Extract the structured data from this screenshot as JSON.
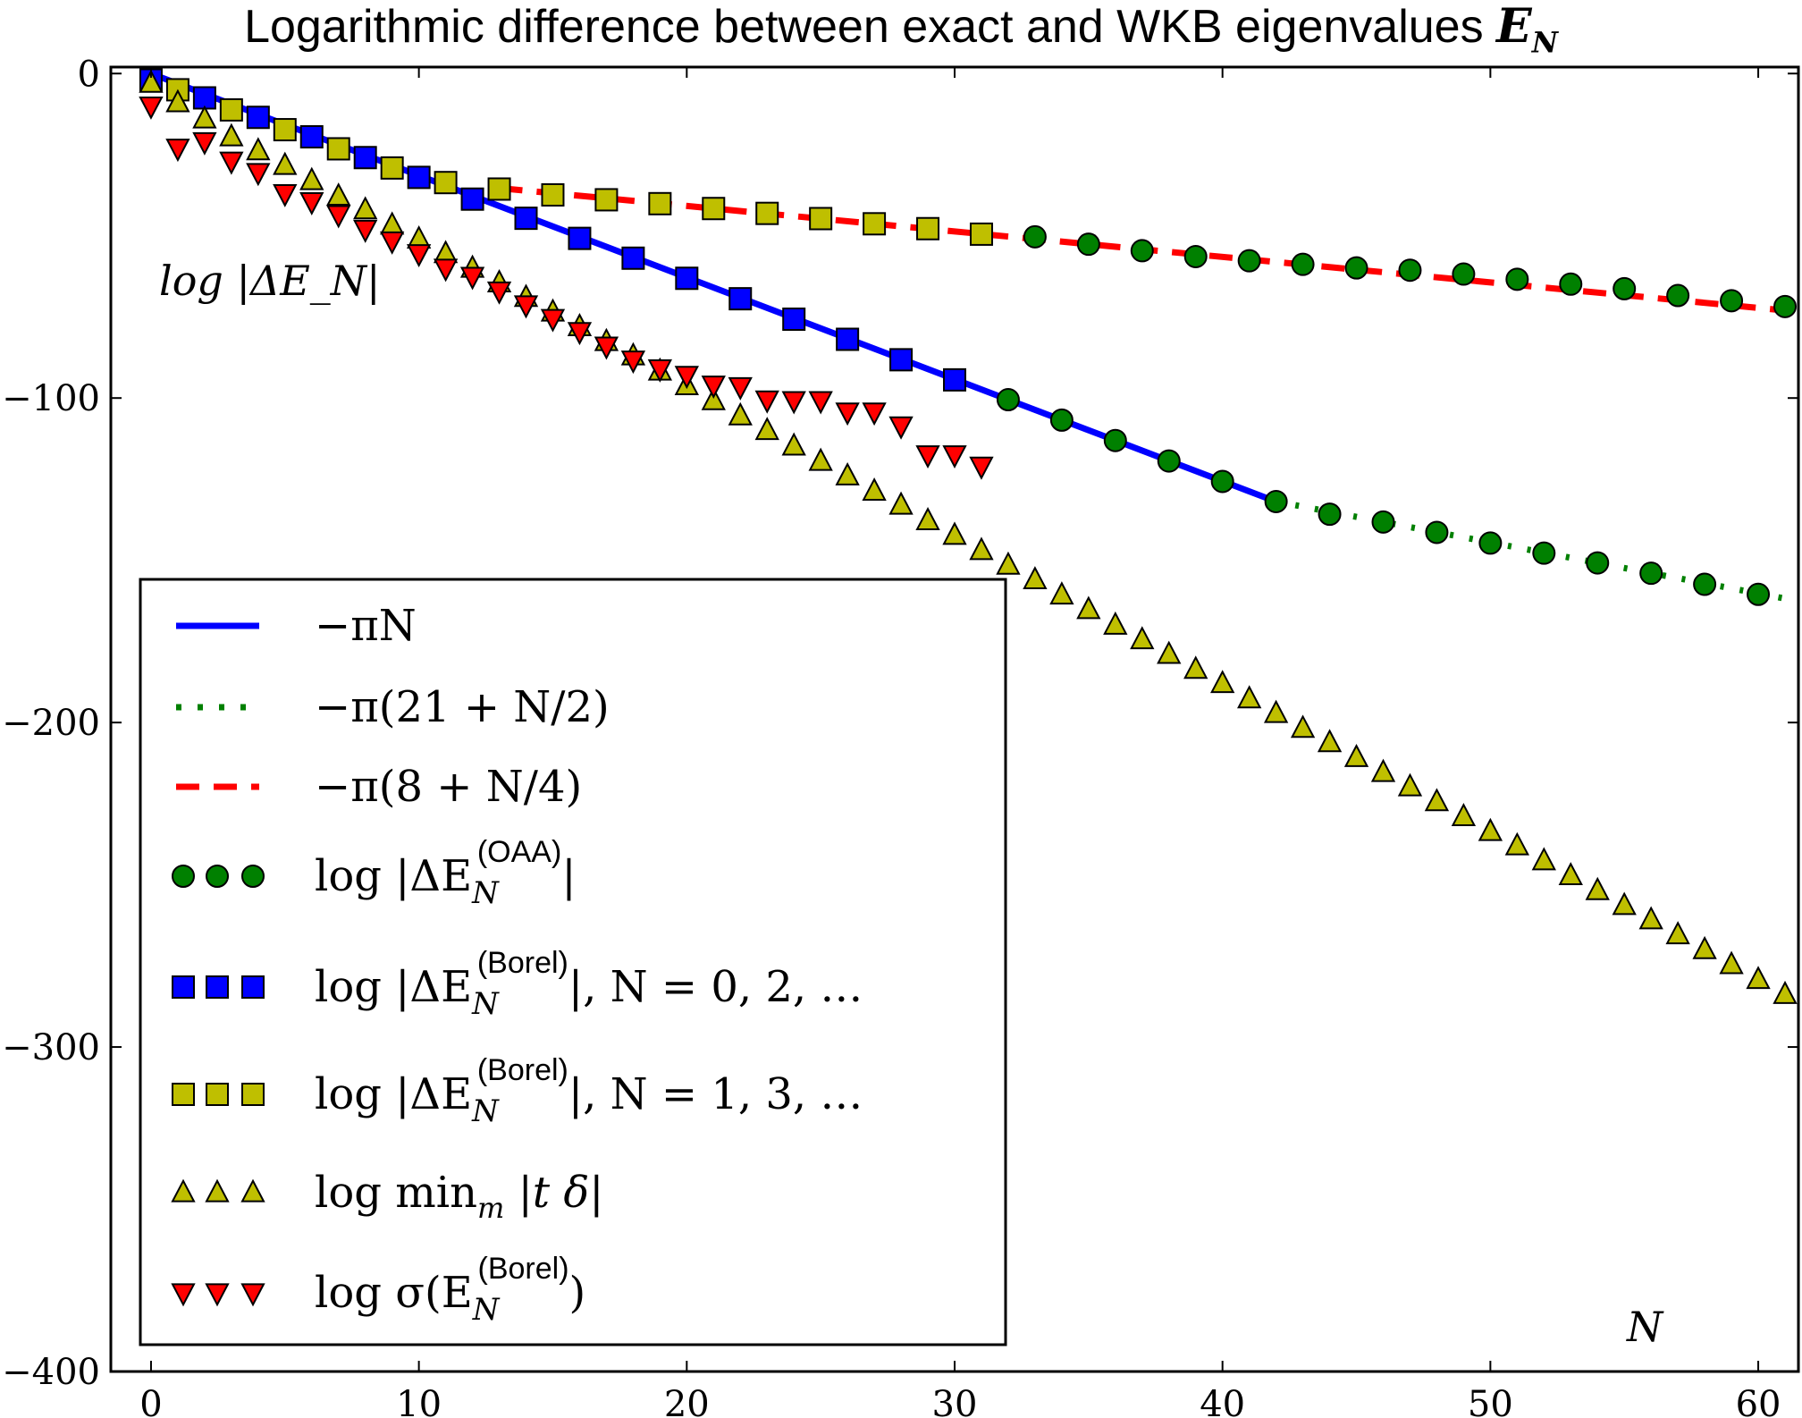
{
  "chart_data": {
    "type": "scatter",
    "title": "Logarithmic difference between exact and WKB eigenvalues",
    "title_symbol": "E",
    "title_symbol_sub": "N",
    "ylabel_annotation": "log |ΔE_N|",
    "xlabel_annotation": "N",
    "xlim": [
      -1.5,
      61.5
    ],
    "ylim": [
      -400,
      2
    ],
    "xticks": [
      0,
      10,
      20,
      30,
      40,
      50,
      60
    ],
    "yticks": [
      0,
      -100,
      -200,
      -300,
      -400
    ],
    "ytick_labels": [
      "0",
      "−100",
      "−200",
      "−300",
      "−400"
    ],
    "legend_position": "lower-left",
    "series": [
      {
        "id": "line_piN",
        "kind": "line",
        "style": "solid",
        "color": "#0000ff",
        "legend_main": "−πN",
        "legend_sup": "",
        "legend_rest": "",
        "x": [
          0,
          42
        ],
        "y": [
          0,
          -131.9
        ]
      },
      {
        "id": "line_21",
        "kind": "line",
        "style": "dotted",
        "color": "#008000",
        "legend_main": "−π(21 + N/2)",
        "legend_sup": "",
        "legend_rest": "",
        "x": [
          42,
          61.5
        ],
        "y": [
          -131.9,
          -162.6
        ]
      },
      {
        "id": "line_8",
        "kind": "line",
        "style": "dashed",
        "color": "#ff0000",
        "legend_main": "−π(8 + N/4)",
        "legend_sup": "",
        "legend_rest": "",
        "x": [
          13,
          61.5
        ],
        "y": [
          -35.3,
          -73.4
        ]
      },
      {
        "id": "oaa",
        "kind": "marker",
        "marker": "circle",
        "color": "#008000",
        "legend_main": "log |ΔE",
        "legend_sup": "(OAA)",
        "legend_rest": "|",
        "x": [
          32,
          33,
          34,
          35,
          36,
          37,
          38,
          39,
          40,
          41,
          42,
          43,
          44,
          45,
          46,
          47,
          48,
          49,
          50,
          51,
          52,
          53,
          54,
          55,
          56,
          57,
          58,
          59,
          60,
          61
        ],
        "y": [
          -100.5,
          -50.3,
          -106.8,
          -52.6,
          -113.1,
          -54.6,
          -119.4,
          -56.4,
          -125.7,
          -57.7,
          -131.9,
          -58.8,
          -135.8,
          -59.9,
          -138.2,
          -60.6,
          -141.4,
          -61.8,
          -144.7,
          -63.4,
          -147.8,
          -64.9,
          -150.8,
          -66.3,
          -154.0,
          -68.4,
          -157.4,
          -70.0,
          -160.5,
          -71.8
        ]
      },
      {
        "id": "borel_even",
        "kind": "marker",
        "marker": "square",
        "color": "#0000ff",
        "legend_main": "log |ΔE",
        "legend_sup": "(Borel)",
        "legend_rest": "|,    N = 0, 2, …",
        "x": [
          0,
          2,
          4,
          6,
          8,
          10,
          12,
          14,
          16,
          18,
          20,
          22,
          24,
          26,
          28,
          30
        ],
        "y": [
          -2,
          -7.5,
          -13.5,
          -19.5,
          -25.9,
          -32,
          -38.7,
          -44.6,
          -50.8,
          -56.9,
          -63.1,
          -69.4,
          -75.7,
          -81.9,
          -88.2,
          -94.4
        ]
      },
      {
        "id": "borel_odd",
        "kind": "marker",
        "marker": "square",
        "color": "#bfbf00",
        "legend_main": "log |ΔE",
        "legend_sup": "(Borel)",
        "legend_rest": "|,    N = 1, 3, …",
        "x": [
          1,
          3,
          5,
          7,
          9,
          11,
          13,
          15,
          17,
          19,
          21,
          23,
          25,
          27,
          29,
          31
        ],
        "y": [
          -5,
          -11.2,
          -17.3,
          -23.2,
          -29.1,
          -33.6,
          -35.6,
          -37.4,
          -38.9,
          -40.1,
          -41.6,
          -43.1,
          -44.7,
          -46.3,
          -47.8,
          -49.5
        ]
      },
      {
        "id": "min_t",
        "kind": "marker",
        "marker": "triangle-up",
        "color": "#bfbf00",
        "legend_main": "log min",
        "legend_sup": "",
        "legend_rest": "|t δ|",
        "x": [
          0,
          1,
          2,
          3,
          4,
          5,
          6,
          7,
          8,
          9,
          10,
          11,
          12,
          13,
          14,
          15,
          16,
          17,
          18,
          19,
          20,
          21,
          22,
          23,
          24,
          25,
          26,
          27,
          28,
          29,
          30,
          31,
          32,
          33,
          34,
          35,
          36,
          37,
          38,
          39,
          40,
          41,
          42,
          43,
          44,
          45,
          46,
          47,
          48,
          49,
          50,
          51,
          52,
          53,
          54,
          55,
          56,
          57,
          58,
          59,
          60,
          61
        ],
        "y": [
          -3,
          -9,
          -14,
          -19.5,
          -23.8,
          -28.3,
          -33,
          -37.8,
          -42,
          -46.7,
          -51,
          -55.5,
          -60,
          -64.5,
          -69,
          -73.5,
          -78,
          -82.6,
          -87,
          -91.7,
          -96.2,
          -100.8,
          -105.5,
          -110,
          -114.8,
          -119.5,
          -124,
          -128.7,
          -133,
          -137.8,
          -142.3,
          -147,
          -151.5,
          -156,
          -160.7,
          -165.2,
          -170,
          -174.5,
          -179,
          -183.6,
          -188,
          -192.7,
          -197.2,
          -201.8,
          -206.2,
          -210.8,
          -215.4,
          -219.8,
          -224.4,
          -229,
          -233.6,
          -238,
          -242.6,
          -247.2,
          -251.8,
          -256.4,
          -260.8,
          -265.4,
          -270,
          -274.6,
          -279.2,
          -283.8
        ]
      },
      {
        "id": "sigma",
        "kind": "marker",
        "marker": "triangle-down",
        "color": "#ff0000",
        "legend_main": "log σ(E",
        "legend_sup": "(Borel)",
        "legend_rest": ")",
        "x": [
          0,
          1,
          2,
          3,
          4,
          5,
          6,
          7,
          8,
          9,
          10,
          11,
          12,
          13,
          14,
          15,
          16,
          17,
          18,
          19,
          20,
          21,
          22,
          23,
          24,
          25,
          26,
          27,
          28,
          29,
          30,
          31
        ],
        "y": [
          -10,
          -23,
          -21,
          -27,
          -30.5,
          -37,
          -39.5,
          -43.5,
          -48,
          -51.6,
          -55.5,
          -60,
          -62.5,
          -67,
          -71.3,
          -75.5,
          -79.5,
          -84,
          -88.3,
          -91,
          -93,
          -96,
          -96.5,
          -100.6,
          -100.8,
          -100.8,
          -104.3,
          -104.3,
          -108.6,
          -117.5,
          -117.5,
          -121
        ]
      }
    ]
  }
}
